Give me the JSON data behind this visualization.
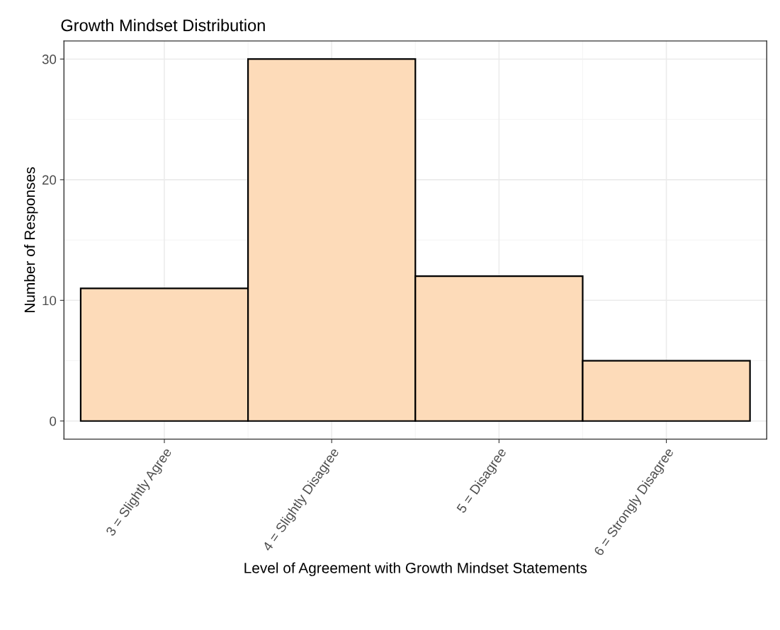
{
  "chart_data": {
    "type": "bar",
    "title": "Growth Mindset Distribution",
    "xlabel": "Level of Agreement with Growth Mindset Statements",
    "ylabel": "Number of Responses",
    "categories": [
      "3 = Slightly Agree",
      "4 = Slightly Disagree",
      "5 = Disagree",
      "6 = Strongly Disagree"
    ],
    "values": [
      11,
      30,
      12,
      5
    ],
    "color": "#fddbb9",
    "ylim": [
      -1.5,
      31.5
    ],
    "yticks": [
      0,
      10,
      20,
      30
    ],
    "grid": true
  }
}
